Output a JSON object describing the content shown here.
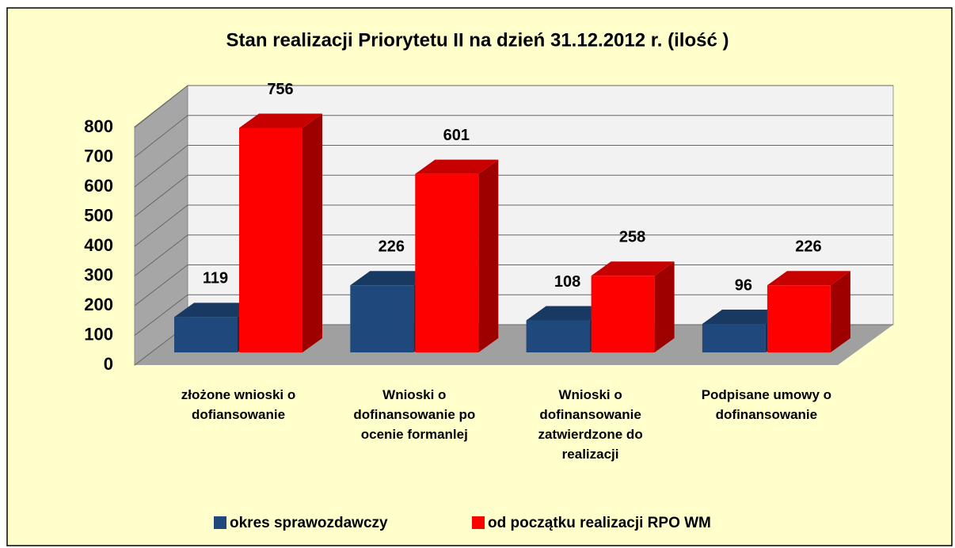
{
  "chart_data": {
    "type": "bar3d",
    "title": "Stan realizacji Priorytetu II na dzień 31.12.2012 r. (ilość )",
    "categories": [
      "złożone wnioski o dofiansowanie",
      "Wnioski o dofinansowanie po ocenie formanlej",
      "Wnioski o dofinansowanie zatwierdzone do realizacji",
      "Podpisane umowy o dofinansowanie"
    ],
    "series": [
      {
        "name": "okres sprawozdawczy",
        "color": "#1f497d",
        "values": [
          119,
          226,
          108,
          96
        ]
      },
      {
        "name": "od początku realizacji RPO WM",
        "color": "#ff0000",
        "values": [
          756,
          601,
          258,
          226
        ]
      }
    ],
    "ylim": [
      0,
      800
    ],
    "yticks": [
      0,
      100,
      200,
      300,
      400,
      500,
      600,
      700,
      800
    ],
    "grid": true,
    "legend": "bottom"
  }
}
